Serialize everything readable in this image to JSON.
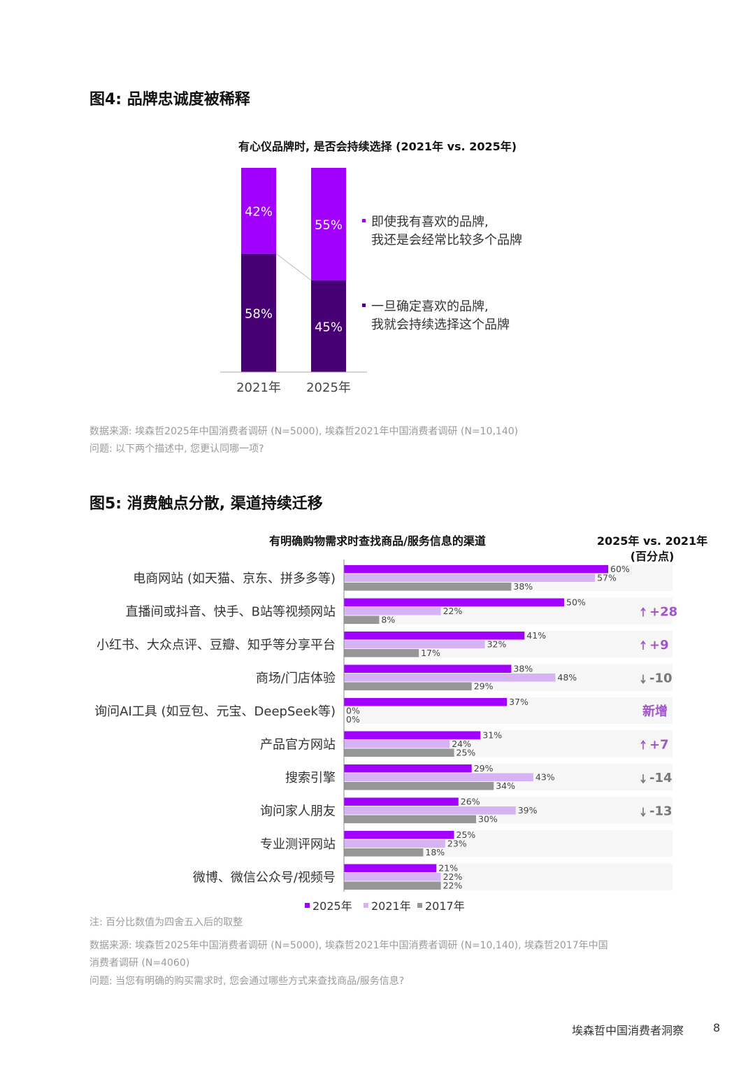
{
  "colors": {
    "light_purple": "#a100ff",
    "dark_purple": "#460073",
    "lavender": "#d6b3f5",
    "gray": "#969696",
    "accent": "#a055c8",
    "row_band": "#eeeeee"
  },
  "fig4": {
    "title": "图4: 品牌忠诚度被稀释",
    "source": "数据来源: 埃森哲2025年中国消费者调研 (N=5000), 埃森哲2021年中国消费者调研 (N=10,140)",
    "question": "问题: 以下两个描述中, 您更认同哪一项?"
  },
  "fig5": {
    "title": "图5: 消费触点分散, 渠道持续迁移",
    "note": "注: 百分比数值为四舍五入后的取整",
    "source_line1": "数据来源: 埃森哲2025年中国消费者调研 (N=5000), 埃森哲2021年中国消费者调研 (N=10,140), 埃森哲2017年中国",
    "source_line2": "消费者调研 (N=4060)",
    "question": "问题: 当您有明确的购买需求时, 您会通过哪些方式来查找商品/服务信息?"
  },
  "chart_data": [
    {
      "type": "bar",
      "stacked": true,
      "title": "有心仪品牌时, 是否会持续选择 (2021年 vs. 2025年)",
      "categories": [
        "2021年",
        "2025年"
      ],
      "series": [
        {
          "name": "即使我有喜欢的品牌, 我还是会经常比较多个品牌",
          "legend_lines": [
            "即使我有喜欢的品牌,",
            "我还是会经常比较多个品牌"
          ],
          "values": [
            42,
            55
          ],
          "labels": [
            "42%",
            "55%"
          ]
        },
        {
          "name": "一旦确定喜欢的品牌, 我就会持续选择这个品牌",
          "legend_lines": [
            "一旦确定喜欢的品牌,",
            "我就会持续选择这个品牌"
          ],
          "values": [
            58,
            45
          ],
          "labels": [
            "58%",
            "45%"
          ]
        }
      ],
      "ylim": [
        0,
        100
      ]
    },
    {
      "type": "bar",
      "orientation": "horizontal",
      "title": "有明确购物需求时查找商品/服务信息的渠道",
      "change_header": [
        "2025年 vs. 2021年",
        "(百分点)"
      ],
      "categories": [
        "电商网站 (如天猫、京东、拼多多等)",
        "直播间或抖音、快手、B站等视频网站",
        "小红书、大众点评、豆瓣、知乎等分享平台",
        "商场/门店体验",
        "询问AI工具 (如豆包、元宝、DeepSeek等)",
        "产品官方网站",
        "搜索引擎",
        "询问家人朋友",
        "专业测评网站",
        "微博、微信公众号/视频号"
      ],
      "series": [
        {
          "name": "2025年",
          "values": [
            60,
            50,
            41,
            38,
            37,
            31,
            29,
            26,
            25,
            21
          ],
          "labels": [
            "60%",
            "50%",
            "41%",
            "38%",
            "37%",
            "31%",
            "29%",
            "26%",
            "25%",
            "21%"
          ]
        },
        {
          "name": "2021年",
          "values": [
            57,
            22,
            32,
            48,
            0,
            24,
            43,
            39,
            23,
            22
          ],
          "labels": [
            "57%",
            "22%",
            "32%",
            "48%",
            "0%",
            "24%",
            "43%",
            "39%",
            "23%",
            "22%"
          ]
        },
        {
          "name": "2017年",
          "values": [
            38,
            8,
            17,
            29,
            0,
            25,
            34,
            30,
            18,
            22
          ],
          "labels": [
            "38%",
            "8%",
            "17%",
            "29%",
            "0%",
            "25%",
            "34%",
            "30%",
            "18%",
            "22%"
          ]
        }
      ],
      "changes": [
        {
          "text": "",
          "dir": ""
        },
        {
          "text": "+28",
          "dir": "up"
        },
        {
          "text": "+9",
          "dir": "up"
        },
        {
          "text": "-10",
          "dir": "down"
        },
        {
          "text": "新增",
          "dir": "new"
        },
        {
          "text": "+7",
          "dir": "up"
        },
        {
          "text": "-14",
          "dir": "down"
        },
        {
          "text": "-13",
          "dir": "down"
        },
        {
          "text": "",
          "dir": ""
        },
        {
          "text": "",
          "dir": ""
        }
      ],
      "legend": [
        "2025年",
        "2021年",
        "2017年"
      ],
      "xlim": [
        0,
        100
      ]
    }
  ],
  "footer": {
    "text": "埃森哲中国消费者洞察",
    "page": "8"
  }
}
